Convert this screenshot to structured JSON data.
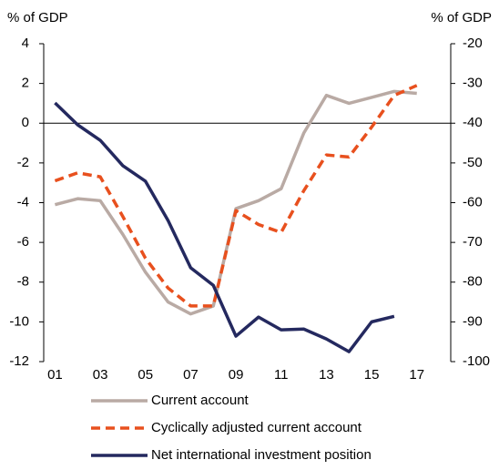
{
  "chart_data": {
    "type": "line",
    "y_label": "% of GDP",
    "y2_label": "% of GDP",
    "x": [
      1,
      2,
      3,
      4,
      5,
      6,
      7,
      8,
      9,
      10,
      11,
      12,
      13,
      14,
      15,
      16,
      17
    ],
    "xlim": [
      0.5,
      18.5
    ],
    "xticks": [
      {
        "value": 1,
        "label": "01"
      },
      {
        "value": 3,
        "label": "03"
      },
      {
        "value": 5,
        "label": "05"
      },
      {
        "value": 7,
        "label": "07"
      },
      {
        "value": 9,
        "label": "09"
      },
      {
        "value": 11,
        "label": "11"
      },
      {
        "value": 13,
        "label": "13"
      },
      {
        "value": 15,
        "label": "15"
      },
      {
        "value": 17,
        "label": "17"
      }
    ],
    "ylim": [
      -12,
      4
    ],
    "yticks": [
      4,
      2,
      0,
      -2,
      -4,
      -6,
      -8,
      -10,
      -12
    ],
    "y2lim": [
      -100,
      -20
    ],
    "y2ticks": [
      -20,
      -30,
      -40,
      -50,
      -60,
      -70,
      -80,
      -90,
      -100
    ],
    "series": [
      {
        "name": "Current account",
        "color": "#b9aaa4",
        "dash": false,
        "values": [
          -4.1,
          -3.8,
          -3.9,
          -5.6,
          -7.5,
          -9.0,
          -9.6,
          -9.2,
          -4.3,
          -3.9,
          -3.3,
          -0.5,
          1.4,
          1.0,
          1.3,
          1.6,
          1.5
        ]
      },
      {
        "name": "Cyclically adjusted current account",
        "color": "#e8501e",
        "dash": true,
        "values": [
          -2.9,
          -2.5,
          -2.7,
          -4.7,
          -6.8,
          -8.3,
          -9.2,
          -9.2,
          -4.4,
          -5.1,
          -5.5,
          -3.4,
          -1.6,
          -1.7,
          -0.2,
          1.4,
          1.9
        ]
      },
      {
        "name": "Net international investment position",
        "color": "#24295f",
        "dash": false,
        "axis": "y2",
        "values": [
          -34.9,
          -40.4,
          -44.3,
          -50.7,
          -54.6,
          -64.5,
          -76.4,
          -80.8,
          -93.6,
          -88.8,
          -92.0,
          -91.8,
          -94.3,
          -97.5,
          -90.0,
          -88.6,
          null
        ]
      }
    ]
  }
}
